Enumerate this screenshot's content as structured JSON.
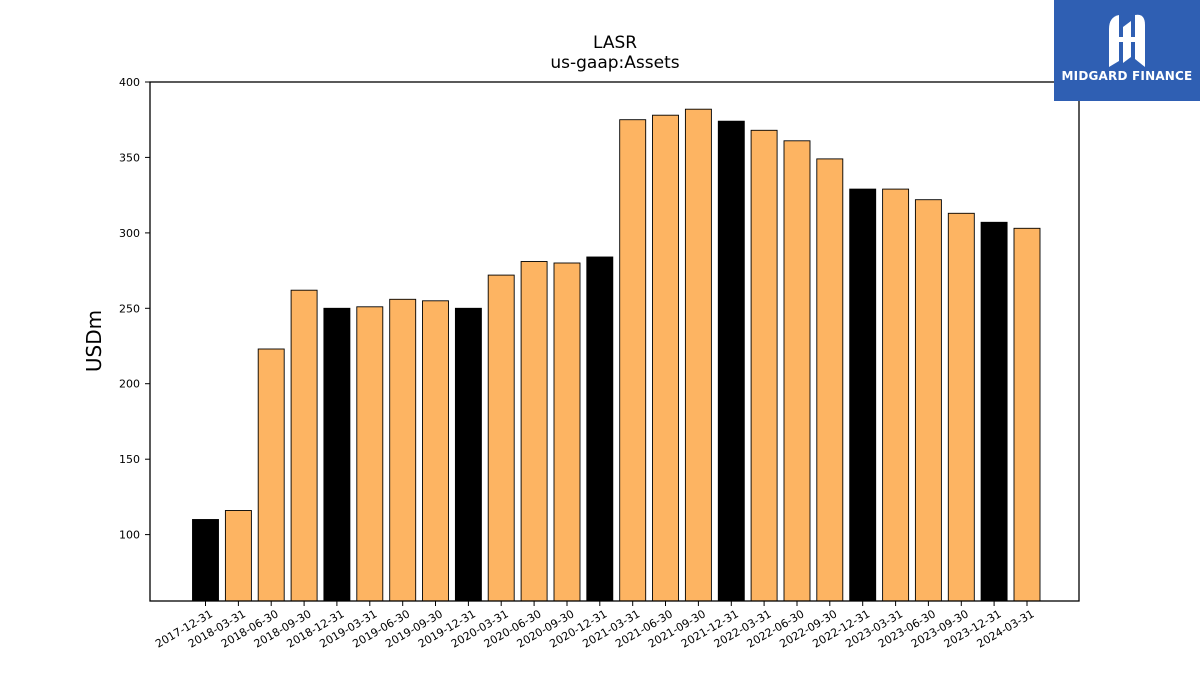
{
  "chart_data": {
    "type": "bar",
    "title": "LASR",
    "subtitle": "us-gaap:Assets",
    "xlabel": "",
    "ylabel": "USDm",
    "ylim": [
      56,
      400
    ],
    "yticks": [
      100,
      150,
      200,
      250,
      300,
      350,
      400
    ],
    "grid": false,
    "categories": [
      "2017-12-31",
      "2018-03-31",
      "2018-06-30",
      "2018-09-30",
      "2018-12-31",
      "2019-03-31",
      "2019-06-30",
      "2019-09-30",
      "2019-12-31",
      "2020-03-31",
      "2020-06-30",
      "2020-09-30",
      "2020-12-31",
      "2021-03-31",
      "2021-06-30",
      "2021-09-30",
      "2021-12-31",
      "2022-03-31",
      "2022-06-30",
      "2022-09-30",
      "2022-12-31",
      "2023-03-31",
      "2023-06-30",
      "2023-09-30",
      "2023-12-31",
      "2024-03-31"
    ],
    "values": [
      110,
      116,
      223,
      262,
      250,
      251,
      256,
      255,
      250,
      272,
      281,
      280,
      284,
      375,
      378,
      382,
      374,
      368,
      361,
      349,
      329,
      329,
      322,
      313,
      307,
      303
    ],
    "bar_colors": [
      "#000000",
      "#fdb462",
      "#fdb462",
      "#fdb462",
      "#000000",
      "#fdb462",
      "#fdb462",
      "#fdb462",
      "#000000",
      "#fdb462",
      "#fdb462",
      "#fdb462",
      "#000000",
      "#fdb462",
      "#fdb462",
      "#fdb462",
      "#000000",
      "#fdb462",
      "#fdb462",
      "#fdb462",
      "#000000",
      "#fdb462",
      "#fdb462",
      "#fdb462",
      "#000000",
      "#fdb462"
    ]
  },
  "logo": {
    "text": "MIDGARD FINANCE",
    "background": "#2f5fb3",
    "icon": "midgard-logo-icon"
  }
}
